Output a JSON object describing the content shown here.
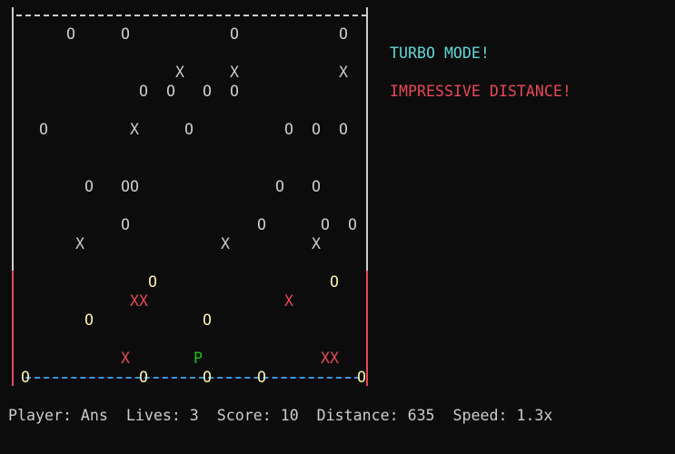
{
  "colors": {
    "border": "#cccccc",
    "danger_wall": "#e74856",
    "ground_line": "#3a96dd",
    "coin": "#f9f1a5",
    "coin_plain": "#cccccc",
    "hazard": "#e74856",
    "player": "#16c60c",
    "turbo": "#61d6d6",
    "impressive": "#e74856"
  },
  "messages": [
    {
      "text": "TURBO MODE!",
      "color": "#61d6d6"
    },
    {
      "text": "IMPRESSIVE DISTANCE!",
      "color": "#e74856"
    }
  ],
  "status_line": "Player: Ans  Lives: 3  Score: 10  Distance: 635  Speed: 1.3x",
  "field": {
    "rows": [
      [
        {
          "col": 6,
          "text": "O"
        },
        {
          "col": 12,
          "text": "O"
        },
        {
          "col": 24,
          "text": "O"
        },
        {
          "col": 36,
          "text": "O"
        }
      ],
      [],
      [
        {
          "col": 18,
          "text": "X"
        },
        {
          "col": 24,
          "text": "X"
        },
        {
          "col": 36,
          "text": "X"
        }
      ],
      [
        {
          "col": 14,
          "text": "O"
        },
        {
          "col": 17,
          "text": "O"
        },
        {
          "col": 21,
          "text": "O"
        },
        {
          "col": 24,
          "text": "O"
        }
      ],
      [],
      [
        {
          "col": 3,
          "text": "O"
        },
        {
          "col": 13,
          "text": "X"
        },
        {
          "col": 19,
          "text": "O"
        },
        {
          "col": 30,
          "text": "O"
        },
        {
          "col": 33,
          "text": "O"
        },
        {
          "col": 36,
          "text": "O"
        }
      ],
      [],
      [],
      [
        {
          "col": 8,
          "text": "O"
        },
        {
          "col": 12,
          "text": "OO"
        },
        {
          "col": 29,
          "text": "O"
        },
        {
          "col": 33,
          "text": "O"
        }
      ],
      [],
      [
        {
          "col": 12,
          "text": "O"
        },
        {
          "col": 27,
          "text": "O"
        },
        {
          "col": 34,
          "text": "O"
        },
        {
          "col": 37,
          "text": "O"
        }
      ],
      [
        {
          "col": 7,
          "text": "X"
        },
        {
          "col": 23,
          "text": "X"
        },
        {
          "col": 33,
          "text": "X"
        }
      ],
      [],
      [
        {
          "col": 15,
          "text": "O",
          "kind": "coin"
        },
        {
          "col": 35,
          "text": "O",
          "kind": "coin"
        }
      ],
      [
        {
          "col": 13,
          "text": "XX",
          "kind": "hazard"
        },
        {
          "col": 30,
          "text": "X",
          "kind": "hazard"
        }
      ],
      [
        {
          "col": 8,
          "text": "O",
          "kind": "coin"
        },
        {
          "col": 21,
          "text": "O",
          "kind": "coin"
        }
      ],
      [],
      [
        {
          "col": 12,
          "text": "X",
          "kind": "hazard"
        },
        {
          "col": 20,
          "text": "P",
          "kind": "player"
        },
        {
          "col": 34,
          "text": "XX",
          "kind": "hazard"
        }
      ],
      [
        {
          "col": 1,
          "text": "O",
          "kind": "coin"
        },
        {
          "col": 14,
          "text": "O",
          "kind": "coin"
        },
        {
          "col": 21,
          "text": "O",
          "kind": "coin"
        },
        {
          "col": 27,
          "text": "O",
          "kind": "coin"
        },
        {
          "col": 38,
          "text": "O",
          "kind": "coin"
        }
      ]
    ]
  }
}
